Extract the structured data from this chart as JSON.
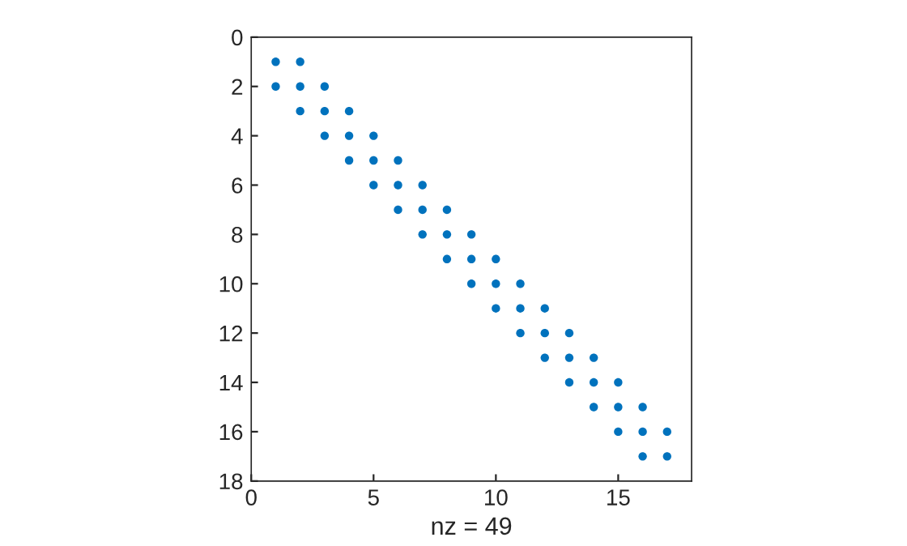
{
  "chart_data": {
    "type": "scatter",
    "xlabel": "nz = 49",
    "x": [
      1,
      1,
      2,
      2,
      2,
      3,
      3,
      3,
      4,
      4,
      4,
      5,
      5,
      5,
      6,
      6,
      6,
      7,
      7,
      7,
      8,
      8,
      8,
      9,
      9,
      9,
      10,
      10,
      10,
      11,
      11,
      11,
      12,
      12,
      12,
      13,
      13,
      13,
      14,
      14,
      14,
      15,
      15,
      15,
      16,
      16,
      16,
      17,
      17
    ],
    "series": [
      {
        "color": "#0072bd",
        "values": [
          1,
          2,
          1,
          2,
          3,
          2,
          3,
          4,
          3,
          4,
          5,
          4,
          5,
          6,
          5,
          6,
          7,
          6,
          7,
          8,
          7,
          8,
          9,
          8,
          9,
          10,
          9,
          10,
          11,
          10,
          11,
          12,
          11,
          12,
          13,
          12,
          13,
          14,
          13,
          14,
          15,
          14,
          15,
          16,
          15,
          16,
          17,
          16,
          17
        ]
      }
    ],
    "xlim": [
      0,
      18
    ],
    "ylim": [
      18,
      0
    ],
    "xticks": [
      0,
      5,
      10,
      15
    ],
    "yticks": [
      0,
      2,
      4,
      6,
      8,
      10,
      12,
      14,
      16,
      18
    ],
    "marker": "circle",
    "grid": false,
    "legend": false
  }
}
